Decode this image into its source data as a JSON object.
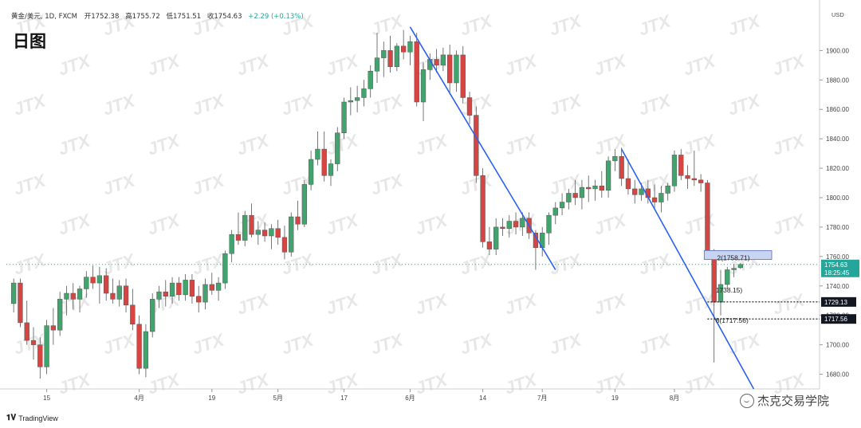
{
  "header": {
    "symbol": "黄金/美元, 1D, FXCM",
    "open_label": "开",
    "open": "1752.38",
    "high_label": "高",
    "high": "1755.72",
    "low_label": "低",
    "low": "1751.51",
    "close_label": "收",
    "close": "1754.63",
    "change": "+2.29 (+0.13%)",
    "title": "日图"
  },
  "branding": {
    "tradingview": "TradingView",
    "account": "杰克交易学院",
    "watermark": "JTX"
  },
  "colors": {
    "up": "#43a36e",
    "down": "#d64541",
    "trendline": "#2a62f0",
    "zone_fill": "#c9d4f2",
    "zone_stroke": "#6d83c9",
    "price_line": "#26a69a"
  },
  "chart_data": {
    "type": "candlestick",
    "currency": "USD",
    "ylim": [
      1670,
      1930
    ],
    "y_ticks": [
      1680,
      1700,
      1720,
      1740,
      1760,
      1780,
      1800,
      1820,
      1840,
      1860,
      1880,
      1900
    ],
    "x_ticks": [
      "15",
      "4月",
      "19",
      "5月",
      "17",
      "6月",
      "14",
      "7月",
      "19",
      "8月"
    ],
    "candles": [
      {
        "o": 1728,
        "h": 1745,
        "l": 1722,
        "c": 1742
      },
      {
        "o": 1742,
        "h": 1745,
        "l": 1712,
        "c": 1715
      },
      {
        "o": 1715,
        "h": 1730,
        "l": 1700,
        "c": 1703
      },
      {
        "o": 1703,
        "h": 1712,
        "l": 1690,
        "c": 1700
      },
      {
        "o": 1700,
        "h": 1705,
        "l": 1677,
        "c": 1685
      },
      {
        "o": 1685,
        "h": 1717,
        "l": 1680,
        "c": 1713
      },
      {
        "o": 1713,
        "h": 1725,
        "l": 1700,
        "c": 1710
      },
      {
        "o": 1710,
        "h": 1736,
        "l": 1706,
        "c": 1731
      },
      {
        "o": 1731,
        "h": 1740,
        "l": 1720,
        "c": 1735
      },
      {
        "o": 1735,
        "h": 1742,
        "l": 1724,
        "c": 1731
      },
      {
        "o": 1731,
        "h": 1740,
        "l": 1722,
        "c": 1738
      },
      {
        "o": 1738,
        "h": 1750,
        "l": 1732,
        "c": 1746
      },
      {
        "o": 1746,
        "h": 1754,
        "l": 1738,
        "c": 1742
      },
      {
        "o": 1742,
        "h": 1753,
        "l": 1728,
        "c": 1747
      },
      {
        "o": 1747,
        "h": 1752,
        "l": 1730,
        "c": 1735
      },
      {
        "o": 1735,
        "h": 1745,
        "l": 1728,
        "c": 1731
      },
      {
        "o": 1731,
        "h": 1744,
        "l": 1726,
        "c": 1740
      },
      {
        "o": 1740,
        "h": 1745,
        "l": 1722,
        "c": 1727
      },
      {
        "o": 1727,
        "h": 1738,
        "l": 1710,
        "c": 1714
      },
      {
        "o": 1714,
        "h": 1720,
        "l": 1680,
        "c": 1684
      },
      {
        "o": 1684,
        "h": 1714,
        "l": 1678,
        "c": 1709
      },
      {
        "o": 1709,
        "h": 1735,
        "l": 1705,
        "c": 1731
      },
      {
        "o": 1731,
        "h": 1740,
        "l": 1725,
        "c": 1736
      },
      {
        "o": 1736,
        "h": 1744,
        "l": 1726,
        "c": 1733
      },
      {
        "o": 1733,
        "h": 1746,
        "l": 1728,
        "c": 1742
      },
      {
        "o": 1742,
        "h": 1746,
        "l": 1730,
        "c": 1734
      },
      {
        "o": 1734,
        "h": 1748,
        "l": 1730,
        "c": 1744
      },
      {
        "o": 1744,
        "h": 1748,
        "l": 1728,
        "c": 1733
      },
      {
        "o": 1733,
        "h": 1740,
        "l": 1722,
        "c": 1729
      },
      {
        "o": 1729,
        "h": 1745,
        "l": 1724,
        "c": 1741
      },
      {
        "o": 1741,
        "h": 1749,
        "l": 1734,
        "c": 1737
      },
      {
        "o": 1737,
        "h": 1746,
        "l": 1730,
        "c": 1742
      },
      {
        "o": 1742,
        "h": 1764,
        "l": 1738,
        "c": 1762
      },
      {
        "o": 1762,
        "h": 1778,
        "l": 1756,
        "c": 1775
      },
      {
        "o": 1775,
        "h": 1790,
        "l": 1768,
        "c": 1771
      },
      {
        "o": 1771,
        "h": 1791,
        "l": 1767,
        "c": 1788
      },
      {
        "o": 1788,
        "h": 1796,
        "l": 1773,
        "c": 1775
      },
      {
        "o": 1775,
        "h": 1784,
        "l": 1768,
        "c": 1778
      },
      {
        "o": 1778,
        "h": 1783,
        "l": 1770,
        "c": 1774
      },
      {
        "o": 1774,
        "h": 1782,
        "l": 1765,
        "c": 1779
      },
      {
        "o": 1779,
        "h": 1785,
        "l": 1768,
        "c": 1773
      },
      {
        "o": 1773,
        "h": 1781,
        "l": 1758,
        "c": 1763
      },
      {
        "o": 1763,
        "h": 1790,
        "l": 1760,
        "c": 1787
      },
      {
        "o": 1787,
        "h": 1798,
        "l": 1778,
        "c": 1782
      },
      {
        "o": 1782,
        "h": 1812,
        "l": 1780,
        "c": 1809
      },
      {
        "o": 1809,
        "h": 1832,
        "l": 1805,
        "c": 1826
      },
      {
        "o": 1826,
        "h": 1845,
        "l": 1822,
        "c": 1833
      },
      {
        "o": 1833,
        "h": 1845,
        "l": 1811,
        "c": 1815
      },
      {
        "o": 1815,
        "h": 1826,
        "l": 1808,
        "c": 1823
      },
      {
        "o": 1823,
        "h": 1848,
        "l": 1818,
        "c": 1844
      },
      {
        "o": 1844,
        "h": 1868,
        "l": 1840,
        "c": 1865
      },
      {
        "o": 1865,
        "h": 1875,
        "l": 1856,
        "c": 1866
      },
      {
        "o": 1866,
        "h": 1876,
        "l": 1858,
        "c": 1868
      },
      {
        "o": 1868,
        "h": 1880,
        "l": 1862,
        "c": 1874
      },
      {
        "o": 1874,
        "h": 1890,
        "l": 1868,
        "c": 1886
      },
      {
        "o": 1886,
        "h": 1912,
        "l": 1878,
        "c": 1895
      },
      {
        "o": 1895,
        "h": 1906,
        "l": 1882,
        "c": 1900
      },
      {
        "o": 1900,
        "h": 1910,
        "l": 1885,
        "c": 1889
      },
      {
        "o": 1889,
        "h": 1905,
        "l": 1886,
        "c": 1903
      },
      {
        "o": 1903,
        "h": 1914,
        "l": 1894,
        "c": 1899
      },
      {
        "o": 1899,
        "h": 1910,
        "l": 1890,
        "c": 1906
      },
      {
        "o": 1906,
        "h": 1912,
        "l": 1862,
        "c": 1865
      },
      {
        "o": 1865,
        "h": 1892,
        "l": 1852,
        "c": 1887
      },
      {
        "o": 1887,
        "h": 1898,
        "l": 1880,
        "c": 1894
      },
      {
        "o": 1894,
        "h": 1901,
        "l": 1885,
        "c": 1890
      },
      {
        "o": 1890,
        "h": 1902,
        "l": 1886,
        "c": 1897
      },
      {
        "o": 1897,
        "h": 1904,
        "l": 1870,
        "c": 1878
      },
      {
        "o": 1878,
        "h": 1900,
        "l": 1872,
        "c": 1897
      },
      {
        "o": 1897,
        "h": 1903,
        "l": 1864,
        "c": 1868
      },
      {
        "o": 1868,
        "h": 1872,
        "l": 1850,
        "c": 1856
      },
      {
        "o": 1856,
        "h": 1862,
        "l": 1810,
        "c": 1815
      },
      {
        "o": 1815,
        "h": 1820,
        "l": 1766,
        "c": 1770
      },
      {
        "o": 1770,
        "h": 1780,
        "l": 1761,
        "c": 1765
      },
      {
        "o": 1765,
        "h": 1786,
        "l": 1761,
        "c": 1780
      },
      {
        "o": 1780,
        "h": 1786,
        "l": 1774,
        "c": 1779
      },
      {
        "o": 1779,
        "h": 1788,
        "l": 1773,
        "c": 1784
      },
      {
        "o": 1784,
        "h": 1790,
        "l": 1775,
        "c": 1780
      },
      {
        "o": 1780,
        "h": 1790,
        "l": 1774,
        "c": 1786
      },
      {
        "o": 1786,
        "h": 1790,
        "l": 1772,
        "c": 1776
      },
      {
        "o": 1776,
        "h": 1778,
        "l": 1751,
        "c": 1766
      },
      {
        "o": 1766,
        "h": 1780,
        "l": 1760,
        "c": 1776
      },
      {
        "o": 1776,
        "h": 1790,
        "l": 1768,
        "c": 1788
      },
      {
        "o": 1788,
        "h": 1797,
        "l": 1782,
        "c": 1793
      },
      {
        "o": 1793,
        "h": 1803,
        "l": 1788,
        "c": 1797
      },
      {
        "o": 1797,
        "h": 1806,
        "l": 1792,
        "c": 1803
      },
      {
        "o": 1803,
        "h": 1812,
        "l": 1795,
        "c": 1800
      },
      {
        "o": 1800,
        "h": 1812,
        "l": 1792,
        "c": 1807
      },
      {
        "o": 1807,
        "h": 1815,
        "l": 1797,
        "c": 1806
      },
      {
        "o": 1806,
        "h": 1812,
        "l": 1798,
        "c": 1808
      },
      {
        "o": 1808,
        "h": 1818,
        "l": 1800,
        "c": 1805
      },
      {
        "o": 1805,
        "h": 1828,
        "l": 1800,
        "c": 1825
      },
      {
        "o": 1825,
        "h": 1833,
        "l": 1818,
        "c": 1828
      },
      {
        "o": 1828,
        "h": 1834,
        "l": 1808,
        "c": 1813
      },
      {
        "o": 1813,
        "h": 1826,
        "l": 1802,
        "c": 1806
      },
      {
        "o": 1806,
        "h": 1812,
        "l": 1796,
        "c": 1802
      },
      {
        "o": 1802,
        "h": 1810,
        "l": 1798,
        "c": 1806
      },
      {
        "o": 1806,
        "h": 1812,
        "l": 1796,
        "c": 1800
      },
      {
        "o": 1800,
        "h": 1809,
        "l": 1792,
        "c": 1797
      },
      {
        "o": 1797,
        "h": 1808,
        "l": 1790,
        "c": 1803
      },
      {
        "o": 1803,
        "h": 1810,
        "l": 1798,
        "c": 1808
      },
      {
        "o": 1808,
        "h": 1832,
        "l": 1804,
        "c": 1829
      },
      {
        "o": 1829,
        "h": 1833,
        "l": 1812,
        "c": 1815
      },
      {
        "o": 1815,
        "h": 1822,
        "l": 1806,
        "c": 1813
      },
      {
        "o": 1813,
        "h": 1832,
        "l": 1808,
        "c": 1812
      },
      {
        "o": 1812,
        "h": 1816,
        "l": 1804,
        "c": 1810
      },
      {
        "o": 1810,
        "h": 1812,
        "l": 1760,
        "c": 1763
      },
      {
        "o": 1763,
        "h": 1765,
        "l": 1688,
        "c": 1729
      },
      {
        "o": 1729,
        "h": 1751,
        "l": 1720,
        "c": 1741
      },
      {
        "o": 1741,
        "h": 1753,
        "l": 1738,
        "c": 1751
      },
      {
        "o": 1751,
        "h": 1755,
        "l": 1746,
        "c": 1752
      },
      {
        "o": 1752.38,
        "h": 1755.72,
        "l": 1751.51,
        "c": 1754.63
      }
    ],
    "trendlines": [
      {
        "from": {
          "i": 60,
          "y": 1916
        },
        "to": {
          "i": 82,
          "y": 1751
        }
      },
      {
        "from": {
          "i": 92,
          "y": 1833
        },
        "to": {
          "i": 112,
          "y": 1670
        }
      }
    ],
    "zone": {
      "y_top": 1764,
      "y_bottom": 1758,
      "label": "2(1758.71)"
    },
    "annotations": [
      {
        "text": "1738.15)",
        "y": 1738.15
      },
      {
        "text": "8(1717.56)",
        "y": 1717.56
      }
    ],
    "levels": [
      {
        "value": 1729.13,
        "label": "1729.13"
      },
      {
        "value": 1717.56,
        "label": "1717.56"
      }
    ],
    "current": {
      "price": "1754.63",
      "countdown": "18:25:45"
    }
  }
}
